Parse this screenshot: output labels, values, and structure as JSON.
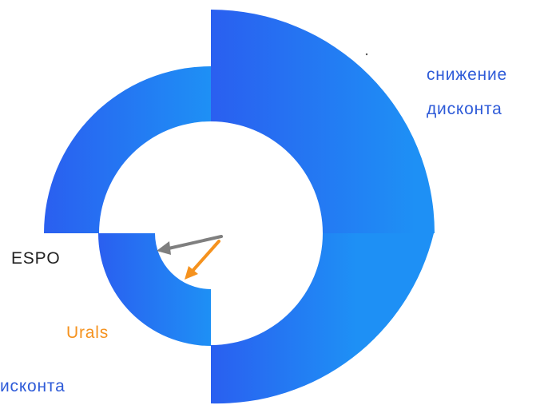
{
  "labels": {
    "top_right_line1": "снижение",
    "top_right_line2": "дисконта",
    "espo": "ESPO",
    "urals": "Urals",
    "bottom_left": "исконта"
  },
  "colors": {
    "gradient_start": "#2a5ff0",
    "gradient_end": "#1e90f5",
    "blue_text": "#2e5bd8",
    "espo_arrow": "#7f7f7f",
    "urals_arrow": "#f5921e",
    "urals_text": "#f5921e",
    "espo_text": "#222222"
  }
}
